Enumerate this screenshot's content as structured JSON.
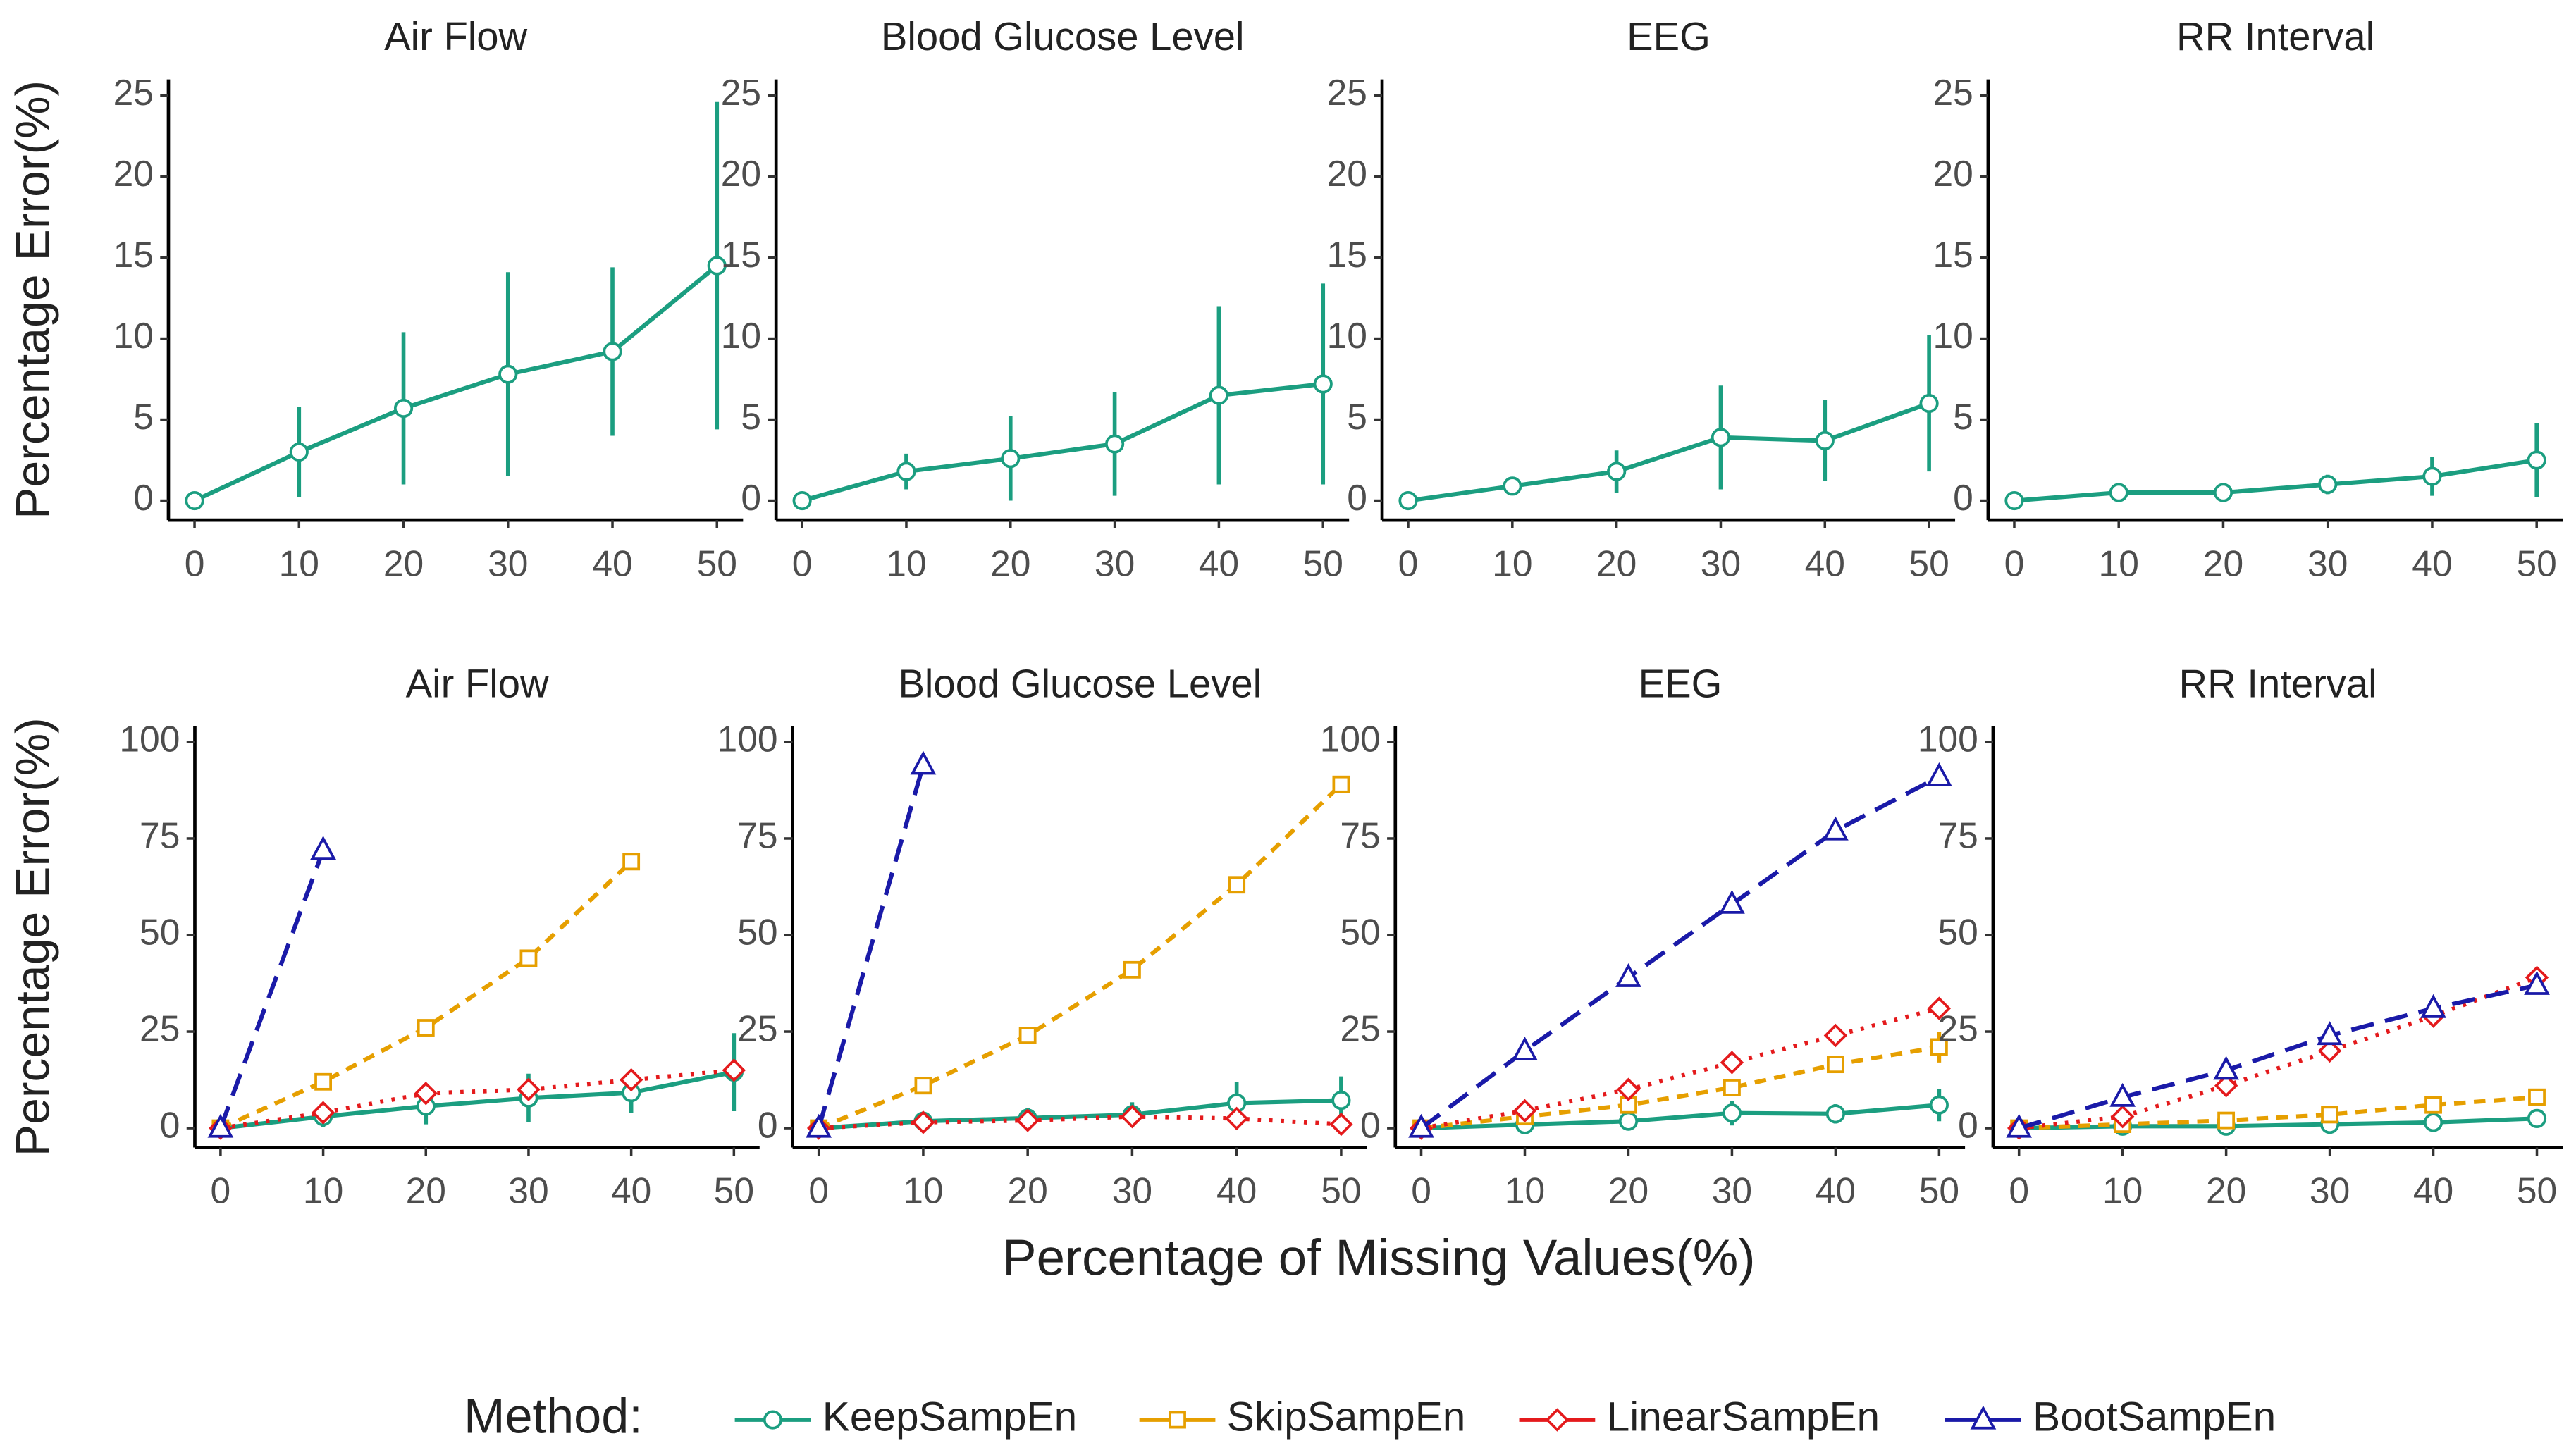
{
  "xlabel": "Percentage of Missing Values(%)",
  "legend_title": "Method:",
  "chart_data": [
    {
      "type": "line",
      "title": "Air Flow",
      "ylabel": "Percentage Error(%)",
      "x": [
        0,
        10,
        20,
        30,
        40,
        50
      ],
      "xlim": [
        -2.5,
        52.5
      ],
      "xticks": [
        0,
        10,
        20,
        30,
        40,
        50
      ],
      "ylim": [
        -1.2,
        26
      ],
      "yticks": [
        0,
        5,
        10,
        15,
        20,
        25
      ],
      "series": [
        {
          "name": "KeepSampEn",
          "color": "#1b9e80",
          "marker": "circle",
          "dash": "solid",
          "values": [
            0,
            3,
            5.7,
            7.8,
            9.2,
            14.5
          ],
          "errors": [
            0,
            2.8,
            4.7,
            6.3,
            5.2,
            10.1
          ]
        }
      ]
    },
    {
      "type": "line",
      "title": "Blood Glucose Level",
      "x": [
        0,
        10,
        20,
        30,
        40,
        50
      ],
      "xlim": [
        -2.5,
        52.5
      ],
      "xticks": [
        0,
        10,
        20,
        30,
        40,
        50
      ],
      "ylim": [
        -1.2,
        26
      ],
      "yticks": [
        0,
        5,
        10,
        15,
        20,
        25
      ],
      "series": [
        {
          "name": "KeepSampEn",
          "color": "#1b9e80",
          "marker": "circle",
          "dash": "solid",
          "values": [
            0,
            1.8,
            2.6,
            3.5,
            6.5,
            7.2
          ],
          "errors": [
            0,
            1.1,
            2.6,
            3.2,
            5.5,
            6.2
          ]
        }
      ]
    },
    {
      "type": "line",
      "title": "EEG",
      "x": [
        0,
        10,
        20,
        30,
        40,
        50
      ],
      "xlim": [
        -2.5,
        52.5
      ],
      "xticks": [
        0,
        10,
        20,
        30,
        40,
        50
      ],
      "ylim": [
        -1.2,
        26
      ],
      "yticks": [
        0,
        5,
        10,
        15,
        20,
        25
      ],
      "series": [
        {
          "name": "KeepSampEn",
          "color": "#1b9e80",
          "marker": "circle",
          "dash": "solid",
          "values": [
            0,
            0.9,
            1.8,
            3.9,
            3.7,
            6.0
          ],
          "errors": [
            0,
            0.4,
            1.3,
            3.2,
            2.5,
            4.2
          ]
        }
      ]
    },
    {
      "type": "line",
      "title": "RR Interval",
      "x": [
        0,
        10,
        20,
        30,
        40,
        50
      ],
      "xlim": [
        -2.5,
        52.5
      ],
      "xticks": [
        0,
        10,
        20,
        30,
        40,
        50
      ],
      "ylim": [
        -1.2,
        26
      ],
      "yticks": [
        0,
        5,
        10,
        15,
        20,
        25
      ],
      "series": [
        {
          "name": "KeepSampEn",
          "color": "#1b9e80",
          "marker": "circle",
          "dash": "solid",
          "values": [
            0,
            0.5,
            0.5,
            1.0,
            1.5,
            2.5
          ],
          "errors": [
            0,
            0.3,
            0.3,
            0.6,
            1.2,
            2.3
          ]
        }
      ]
    },
    {
      "type": "line",
      "title": "Air Flow",
      "ylabel": "Percentage Error(%)",
      "x": [
        0,
        10,
        20,
        30,
        40,
        50
      ],
      "xlim": [
        -2.5,
        52.5
      ],
      "xticks": [
        0,
        10,
        20,
        30,
        40,
        50
      ],
      "ylim": [
        -5,
        104
      ],
      "yticks": [
        0,
        25,
        50,
        75,
        100
      ],
      "series": [
        {
          "name": "KeepSampEn",
          "color": "#1b9e80",
          "marker": "circle",
          "dash": "solid",
          "values": [
            0,
            3,
            5.7,
            7.8,
            9.2,
            14.5
          ],
          "errors": [
            0,
            2.8,
            4.7,
            6.3,
            5.2,
            10.1
          ]
        },
        {
          "name": "SkipSampEn",
          "color": "#e69f00",
          "marker": "square",
          "dash": "dashed",
          "values": [
            0,
            12,
            26,
            44,
            69,
            null
          ]
        },
        {
          "name": "LinearSampEn",
          "color": "#e41a1c",
          "marker": "diamond",
          "dash": "dotted",
          "values": [
            0,
            4,
            9,
            10,
            12.5,
            15
          ]
        },
        {
          "name": "BootSampEn",
          "color": "#1a1aa8",
          "marker": "triangle",
          "dash": "longdash",
          "values": [
            0,
            72,
            null,
            null,
            null,
            null
          ]
        }
      ]
    },
    {
      "type": "line",
      "title": "Blood Glucose Level",
      "x": [
        0,
        10,
        20,
        30,
        40,
        50
      ],
      "xlim": [
        -2.5,
        52.5
      ],
      "xticks": [
        0,
        10,
        20,
        30,
        40,
        50
      ],
      "ylim": [
        -5,
        104
      ],
      "yticks": [
        0,
        25,
        50,
        75,
        100
      ],
      "series": [
        {
          "name": "KeepSampEn",
          "color": "#1b9e80",
          "marker": "circle",
          "dash": "solid",
          "values": [
            0,
            1.8,
            2.6,
            3.5,
            6.5,
            7.2
          ],
          "errors": [
            0,
            1.1,
            2.6,
            3.2,
            5.5,
            6.2
          ]
        },
        {
          "name": "SkipSampEn",
          "color": "#e69f00",
          "marker": "square",
          "dash": "dashed",
          "values": [
            0,
            11,
            24,
            41,
            63,
            89
          ]
        },
        {
          "name": "LinearSampEn",
          "color": "#e41a1c",
          "marker": "diamond",
          "dash": "dotted",
          "values": [
            0,
            1.5,
            2,
            3,
            2.5,
            1
          ]
        },
        {
          "name": "BootSampEn",
          "color": "#1a1aa8",
          "marker": "triangle",
          "dash": "longdash",
          "values": [
            0,
            94,
            null,
            null,
            null,
            null
          ]
        }
      ]
    },
    {
      "type": "line",
      "title": "EEG",
      "x": [
        0,
        10,
        20,
        30,
        40,
        50
      ],
      "xlim": [
        -2.5,
        52.5
      ],
      "xticks": [
        0,
        10,
        20,
        30,
        40,
        50
      ],
      "ylim": [
        -5,
        104
      ],
      "yticks": [
        0,
        25,
        50,
        75,
        100
      ],
      "series": [
        {
          "name": "KeepSampEn",
          "color": "#1b9e80",
          "marker": "circle",
          "dash": "solid",
          "values": [
            0,
            0.9,
            1.8,
            3.9,
            3.7,
            6.0
          ],
          "errors": [
            0,
            0.4,
            1.3,
            3.2,
            2.5,
            4.2
          ]
        },
        {
          "name": "SkipSampEn",
          "color": "#e69f00",
          "marker": "square",
          "dash": "dashed",
          "values": [
            0,
            3,
            6,
            10.5,
            16.5,
            21
          ],
          "errors": [
            0,
            1,
            1,
            1.5,
            1.5,
            4
          ]
        },
        {
          "name": "LinearSampEn",
          "color": "#e41a1c",
          "marker": "diamond",
          "dash": "dotted",
          "values": [
            0,
            4.5,
            10,
            17,
            24,
            31
          ]
        },
        {
          "name": "BootSampEn",
          "color": "#1a1aa8",
          "marker": "triangle",
          "dash": "longdash",
          "values": [
            0,
            20,
            39,
            58,
            77,
            91
          ]
        }
      ]
    },
    {
      "type": "line",
      "title": "RR Interval",
      "x": [
        0,
        10,
        20,
        30,
        40,
        50
      ],
      "xlim": [
        -2.5,
        52.5
      ],
      "xticks": [
        0,
        10,
        20,
        30,
        40,
        50
      ],
      "ylim": [
        -5,
        104
      ],
      "yticks": [
        0,
        25,
        50,
        75,
        100
      ],
      "series": [
        {
          "name": "KeepSampEn",
          "color": "#1b9e80",
          "marker": "circle",
          "dash": "solid",
          "values": [
            0,
            0.5,
            0.5,
            1.0,
            1.5,
            2.5
          ],
          "errors": [
            0,
            0.3,
            0.3,
            0.6,
            1.2,
            2.3
          ]
        },
        {
          "name": "SkipSampEn",
          "color": "#e69f00",
          "marker": "square",
          "dash": "dashed",
          "values": [
            0,
            1,
            2,
            3.5,
            6,
            8
          ]
        },
        {
          "name": "LinearSampEn",
          "color": "#e41a1c",
          "marker": "diamond",
          "dash": "dotted",
          "values": [
            0,
            3,
            11,
            20,
            29,
            39
          ]
        },
        {
          "name": "BootSampEn",
          "color": "#1a1aa8",
          "marker": "triangle",
          "dash": "longdash",
          "values": [
            0,
            8,
            15,
            24,
            31,
            37
          ]
        }
      ]
    }
  ]
}
